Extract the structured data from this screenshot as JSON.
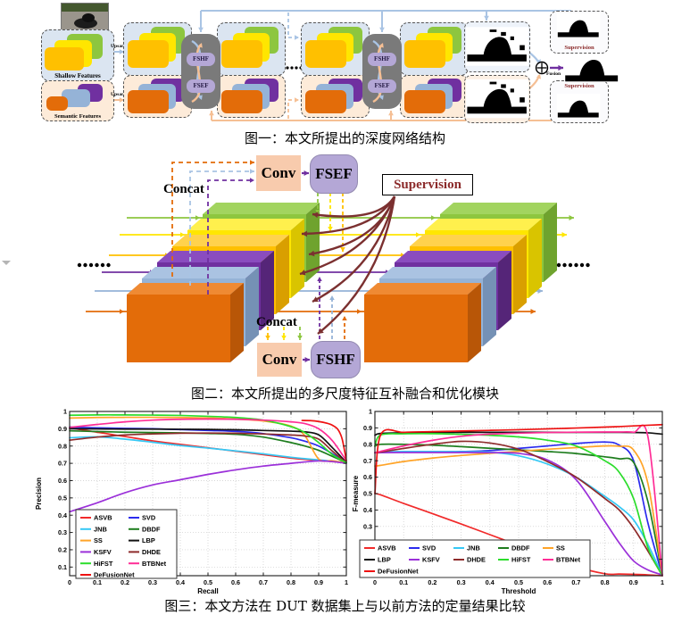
{
  "figure1": {
    "caption": "图一：本文所提出的深度网络结构",
    "shallow_label": "Shallow Features",
    "semantic_label": "Semantic Features",
    "upsample_label": "Upsample",
    "fshf_label": "FSHF",
    "fsef_label": "FSEF",
    "supervision_label": "Supervision",
    "fusion_label": "Fusion"
  },
  "figure2": {
    "caption": "图二：本文所提出的多尺度特征互补融合和优化模块",
    "concat_label": "Concat",
    "conv_label": "Conv",
    "fsef_label": "FSEF",
    "fshf_label": "FSHF",
    "supervision_label": "Supervision"
  },
  "figure3": {
    "caption": "图三：本文方法在 DUT 数据集上与以前方法的定量结果比较"
  },
  "palette": {
    "green": "#8dc63f",
    "green_side": "#6fa32e",
    "green_top": "#a2d45f",
    "yellow": "#ffe600",
    "yellow_side": "#d9c400",
    "yellow_top": "#fff04d",
    "gold": "#ffc000",
    "gold_side": "#d99f00",
    "gold_top": "#ffd24d",
    "purple": "#7030a0",
    "purple_side": "#552578",
    "purple_top": "#8a4cbf",
    "steel_blue": "#95b3d7",
    "steel_blue_side": "#7591b5",
    "steel_blue_top": "#aac3e2",
    "dark_orange": "#e36c09",
    "dark_orange_side": "#b85607",
    "dark_orange_top": "#ef8a33",
    "light_blue_bg": "#dbe5f1",
    "peach_bg": "#fdebd9",
    "module_gray": "#7a7a7a",
    "pill_purple": "#b4a7d6",
    "conv_peach": "#f8cbad",
    "supervision_red": "#8b2a2a",
    "arrow_blue": "#a9c4e4",
    "arrow_peach": "#f5bf94",
    "maroon": "#7b3030"
  },
  "chart_data": [
    {
      "type": "line",
      "title": "",
      "xlabel": "Recall",
      "ylabel": "Precision",
      "xlim": [
        0,
        1
      ],
      "ylim": [
        0.05,
        1
      ],
      "xticks": [
        0,
        0.1,
        0.2,
        0.3,
        0.4,
        0.5,
        0.6,
        0.7,
        0.8,
        0.9,
        1
      ],
      "yticks": [
        0.1,
        0.2,
        0.3,
        0.4,
        0.5,
        0.6,
        0.7,
        0.8,
        0.9,
        1
      ],
      "grid": true,
      "legend_position": "bottom-left",
      "legend_columns": 2,
      "x": [
        0,
        0.1,
        0.2,
        0.3,
        0.4,
        0.5,
        0.6,
        0.7,
        0.8,
        0.85,
        0.9,
        0.95,
        1
      ],
      "series": [
        {
          "name": "ASVB",
          "color": "#f12a2a",
          "y": [
            0.905,
            0.88,
            0.855,
            0.83,
            0.81,
            0.79,
            0.77,
            0.75,
            0.73,
            0.723,
            0.717,
            0.71,
            0.703
          ]
        },
        {
          "name": "SVD",
          "color": "#2b2bee",
          "y": [
            0.91,
            0.905,
            0.902,
            0.9,
            0.895,
            0.89,
            0.885,
            0.872,
            0.848,
            0.828,
            0.8,
            0.755,
            0.705
          ]
        },
        {
          "name": "JNB",
          "color": "#35c8f5",
          "y": [
            0.848,
            0.853,
            0.84,
            0.822,
            0.803,
            0.788,
            0.772,
            0.755,
            0.735,
            0.727,
            0.72,
            0.712,
            0.703
          ]
        },
        {
          "name": "DBDF",
          "color": "#1e7d1e",
          "y": [
            0.888,
            0.884,
            0.88,
            0.878,
            0.876,
            0.873,
            0.868,
            0.852,
            0.82,
            0.8,
            0.775,
            0.74,
            0.703
          ]
        },
        {
          "name": "SS",
          "color": "#ffa428",
          "y": [
            0.962,
            0.965,
            0.966,
            0.966,
            0.965,
            0.962,
            0.956,
            0.945,
            0.915,
            0.86,
            0.725,
            0.715,
            0.703
          ]
        },
        {
          "name": "LBP",
          "color": "#111111",
          "y": [
            0.9,
            0.899,
            0.898,
            0.898,
            0.897,
            0.896,
            0.894,
            0.89,
            0.886,
            0.882,
            0.865,
            0.79,
            0.705
          ]
        },
        {
          "name": "KSFV",
          "color": "#9b30d9",
          "y": [
            0.42,
            0.472,
            0.53,
            0.575,
            0.605,
            0.636,
            0.662,
            0.684,
            0.7,
            0.708,
            0.714,
            0.71,
            0.7
          ]
        },
        {
          "name": "DHDE",
          "color": "#8e2b2b",
          "y": [
            0.834,
            0.852,
            0.864,
            0.87,
            0.874,
            0.875,
            0.874,
            0.87,
            0.864,
            0.858,
            0.84,
            0.77,
            0.703
          ]
        },
        {
          "name": "HiFST",
          "color": "#2bdd2b",
          "y": [
            0.978,
            0.98,
            0.98,
            0.979,
            0.977,
            0.972,
            0.965,
            0.95,
            0.912,
            0.878,
            0.82,
            0.75,
            0.703
          ]
        },
        {
          "name": "BTBNet",
          "color": "#ff2d96",
          "y": [
            0.908,
            0.925,
            0.94,
            0.95,
            0.955,
            0.956,
            0.955,
            0.95,
            0.94,
            0.93,
            0.9,
            0.83,
            0.715
          ]
        },
        {
          "name": "DeFusionNet",
          "color": "#ee1111",
          "x": [
            0.84,
            0.87,
            0.9,
            0.93,
            0.95,
            0.97,
            0.985,
            1
          ],
          "y": [
            0.948,
            0.947,
            0.942,
            0.932,
            0.92,
            0.895,
            0.84,
            0.715
          ]
        }
      ]
    },
    {
      "type": "line",
      "title": "",
      "xlabel": "Threshold",
      "ylabel": "F-measure",
      "xlim": [
        0,
        1
      ],
      "ylim": [
        0,
        1
      ],
      "xticks": [
        0,
        0.1,
        0.2,
        0.3,
        0.4,
        0.5,
        0.6,
        0.7,
        0.8,
        0.9,
        1
      ],
      "yticks": [
        0,
        0.1,
        0.2,
        0.3,
        0.4,
        0.5,
        0.6,
        0.7,
        0.8,
        0.9,
        1
      ],
      "grid": true,
      "legend_position": "bottom",
      "legend_columns": 5,
      "x": [
        0,
        0.02,
        0.1,
        0.2,
        0.3,
        0.4,
        0.5,
        0.6,
        0.7,
        0.8,
        0.85,
        0.9,
        0.95,
        1
      ],
      "series": [
        {
          "name": "ASVB",
          "color": "#f12a2a",
          "y": [
            0.5,
            0.492,
            0.44,
            0.378,
            0.315,
            0.25,
            0.185,
            0.12,
            0.055,
            0.012,
            0.01,
            0.008,
            0.005,
            0
          ]
        },
        {
          "name": "SVD",
          "color": "#2b2bee",
          "y": [
            0.748,
            0.75,
            0.752,
            0.754,
            0.756,
            0.762,
            0.775,
            0.79,
            0.805,
            0.814,
            0.795,
            0.7,
            0.32,
            0
          ]
        },
        {
          "name": "JNB",
          "color": "#35c8f5",
          "y": [
            0.75,
            0.754,
            0.756,
            0.756,
            0.755,
            0.752,
            0.73,
            0.68,
            0.6,
            0.483,
            0.42,
            0.34,
            0.19,
            0
          ]
        },
        {
          "name": "DBDF",
          "color": "#1e7d1e",
          "y": [
            0.788,
            0.8,
            0.8,
            0.795,
            0.786,
            0.776,
            0.766,
            0.756,
            0.744,
            0.724,
            0.712,
            0.69,
            0.45,
            0
          ]
        },
        {
          "name": "SS",
          "color": "#ffa428",
          "y": [
            0.668,
            0.672,
            0.695,
            0.716,
            0.732,
            0.745,
            0.757,
            0.77,
            0.78,
            0.79,
            0.788,
            0.765,
            0.56,
            0
          ]
        },
        {
          "name": "LBP",
          "color": "#111111",
          "y": [
            0.855,
            0.866,
            0.87,
            0.872,
            0.873,
            0.873,
            0.873,
            0.873,
            0.873,
            0.873,
            0.873,
            0.872,
            0.87,
            0.862
          ]
        },
        {
          "name": "KSFV",
          "color": "#9b30d9",
          "y": [
            0.749,
            0.75,
            0.75,
            0.75,
            0.75,
            0.749,
            0.745,
            0.705,
            0.585,
            0.33,
            0.2,
            0.09,
            0.035,
            0.005
          ]
        },
        {
          "name": "DHDE",
          "color": "#8e2b2b",
          "y": [
            0.748,
            0.753,
            0.775,
            0.8,
            0.818,
            0.808,
            0.77,
            0.695,
            0.6,
            0.47,
            0.4,
            0.29,
            0.15,
            0
          ]
        },
        {
          "name": "HiFST",
          "color": "#2bdd2b",
          "y": [
            0.79,
            0.857,
            0.864,
            0.865,
            0.861,
            0.855,
            0.845,
            0.825,
            0.79,
            0.7,
            0.63,
            0.47,
            0.17,
            0
          ]
        },
        {
          "name": "BTBNet",
          "color": "#ff2d96",
          "y": [
            0.748,
            0.757,
            0.79,
            0.824,
            0.849,
            0.862,
            0.868,
            0.872,
            0.874,
            0.875,
            0.875,
            0.873,
            0.845,
            0
          ]
        },
        {
          "name": "DeFusionNet",
          "color": "#ee1111",
          "y": [
            0.5,
            0.858,
            0.873,
            0.877,
            0.881,
            0.885,
            0.889,
            0.894,
            0.899,
            0.905,
            0.908,
            0.912,
            0.916,
            0.92
          ]
        }
      ]
    }
  ]
}
